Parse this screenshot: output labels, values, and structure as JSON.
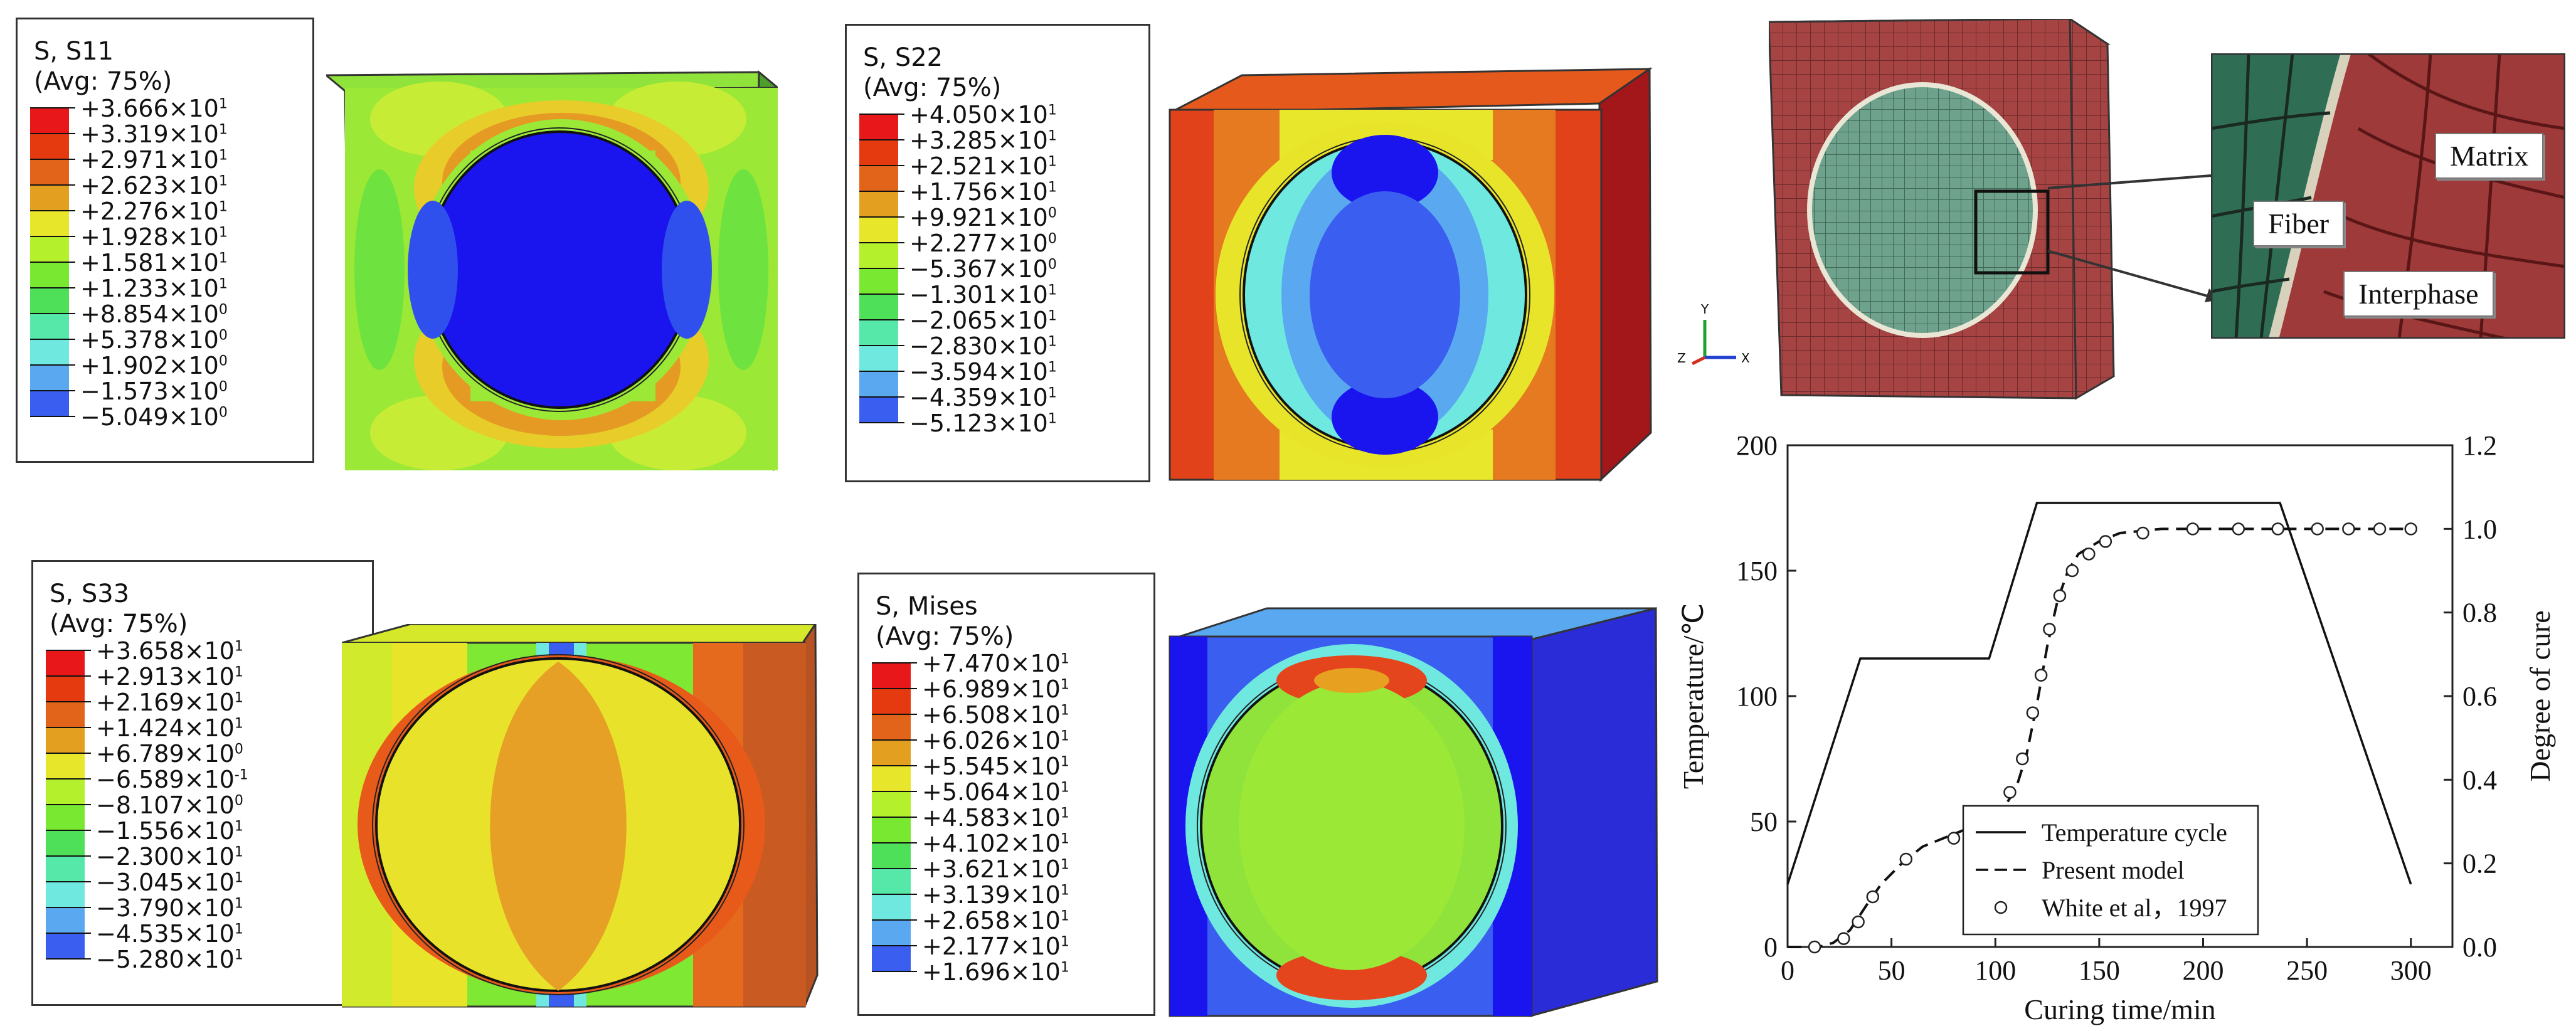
{
  "legends": [
    {
      "id": "s11",
      "title": "S, S11",
      "avg": "(Avg: 75%)",
      "values": [
        "+3.666×10^1",
        "+3.319×10^1",
        "+2.971×10^1",
        "+2.623×10^1",
        "+2.276×10^1",
        "+1.928×10^1",
        "+1.581×10^1",
        "+1.233×10^1",
        "+8.854×10^0",
        "+5.378×10^0",
        "+1.902×10^0",
        "−1.573×10^0",
        "−5.049×10^0"
      ]
    },
    {
      "id": "s22",
      "title": "S, S22",
      "avg": "(Avg: 75%)",
      "values": [
        "+4.050×10^1",
        "+3.285×10^1",
        "+2.521×10^1",
        "+1.756×10^1",
        "+9.921×10^0",
        "+2.277×10^0",
        "−5.367×10^0",
        "−1.301×10^1",
        "−2.065×10^1",
        "−2.830×10^1",
        "−3.594×10^1",
        "−4.359×10^1",
        "−5.123×10^1"
      ]
    },
    {
      "id": "s33",
      "title": "S, S33",
      "avg": "(Avg: 75%)",
      "values": [
        "+3.658×10^1",
        "+2.913×10^1",
        "+2.169×10^1",
        "+1.424×10^1",
        "+6.789×10^0",
        "−6.589×10^-1",
        "−8.107×10^0",
        "−1.556×10^1",
        "−2.300×10^1",
        "−3.045×10^1",
        "−3.790×10^1",
        "−4.535×10^1",
        "−5.280×10^1"
      ]
    },
    {
      "id": "mises",
      "title": "S, Mises",
      "avg": "(Avg: 75%)",
      "values": [
        "+7.470×10^1",
        "+6.989×10^1",
        "+6.508×10^1",
        "+6.026×10^1",
        "+5.545×10^1",
        "+5.064×10^1",
        "+4.583×10^1",
        "+4.102×10^1",
        "+3.621×10^1",
        "+3.139×10^1",
        "+2.658×10^1",
        "+2.177×10^1",
        "+1.696×10^1"
      ]
    }
  ],
  "colormap": [
    "#e8181a",
    "#e53a10",
    "#e2641a",
    "#e3a020",
    "#e8e62a",
    "#b5f02c",
    "#78e830",
    "#4fe05a",
    "#55e8a8",
    "#6fe8e0",
    "#5aa8f0",
    "#3a5ef0",
    "#1a14f0"
  ],
  "mesh_labels": {
    "fiber": "Fiber",
    "matrix": "Matrix",
    "interphase": "Interphase",
    "axis_y": "Y",
    "axis_z": "Z",
    "axis_x": "X"
  },
  "chart_data": {
    "type": "line",
    "xlabel": "Curing time/min",
    "ylabel": "Temperature/℃",
    "y2label": "Degree of cure",
    "xlim": [
      0,
      320
    ],
    "ylim": [
      0,
      200
    ],
    "y2lim": [
      0,
      1.2
    ],
    "xticks": [
      "0",
      "50",
      "100",
      "150",
      "200",
      "250",
      "300"
    ],
    "yticks": [
      "0",
      "50",
      "100",
      "150",
      "200"
    ],
    "y2ticks": [
      "0.0",
      "0.2",
      "0.4",
      "0.6",
      "0.8",
      "1.0",
      "1.2"
    ],
    "legend_position": "bottom-right",
    "series": [
      {
        "name": "Temperature cycle",
        "axis": "left",
        "style": "solid",
        "x": [
          0,
          35,
          97,
          120,
          237,
          300
        ],
        "y": [
          25,
          115,
          115,
          177,
          177,
          25
        ]
      },
      {
        "name": "Present model",
        "axis": "right",
        "style": "dashed",
        "x": [
          0,
          15,
          22,
          30,
          38,
          45,
          55,
          65,
          75,
          85,
          95,
          100,
          105,
          110,
          115,
          120,
          125,
          130,
          135,
          140,
          150,
          160,
          170,
          180,
          200,
          240,
          300
        ],
        "y": [
          0,
          0,
          0.01,
          0.04,
          0.1,
          0.15,
          0.2,
          0.24,
          0.26,
          0.28,
          0.3,
          0.31,
          0.34,
          0.38,
          0.46,
          0.58,
          0.72,
          0.83,
          0.9,
          0.94,
          0.97,
          0.99,
          0.995,
          1.0,
          1.0,
          1.0,
          1.0
        ]
      },
      {
        "name": "White et al，1997",
        "axis": "right",
        "style": "circle",
        "x": [
          13,
          27,
          34,
          41,
          57,
          80,
          97,
          107,
          113,
          118,
          122,
          126,
          131,
          137,
          145,
          153,
          171,
          195,
          217,
          236,
          255,
          270,
          285,
          300
        ],
        "y": [
          0,
          0.02,
          0.06,
          0.12,
          0.21,
          0.26,
          0.3,
          0.37,
          0.45,
          0.56,
          0.65,
          0.76,
          0.84,
          0.9,
          0.94,
          0.97,
          0.99,
          1.0,
          1.0,
          1.0,
          1.0,
          1.0,
          1.0,
          1.0
        ]
      }
    ]
  }
}
